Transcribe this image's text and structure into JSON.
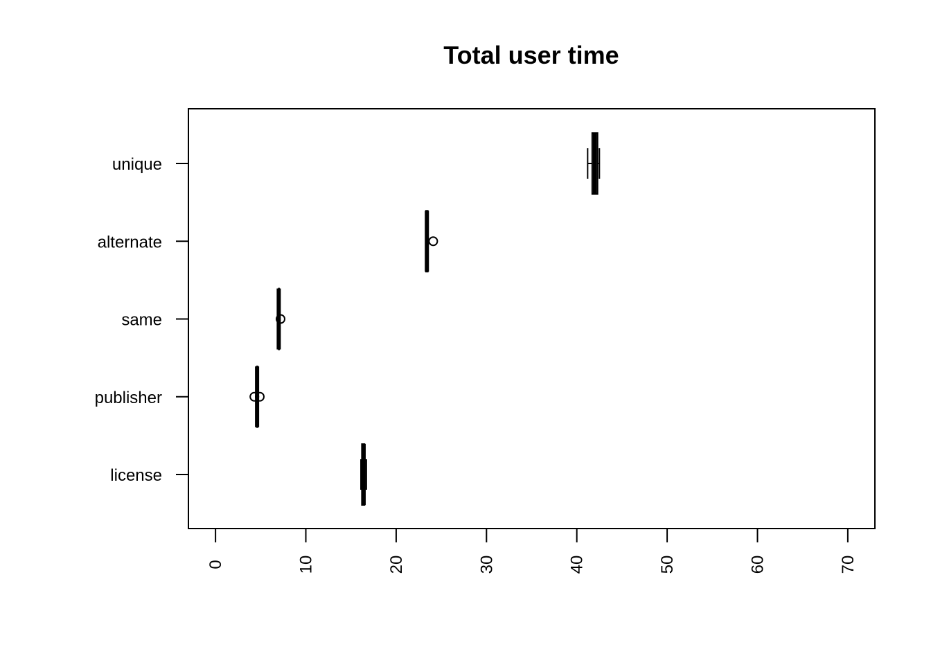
{
  "chart_data": {
    "type": "boxplot",
    "orientation": "horizontal",
    "title": "Total user time",
    "xlim": [
      -3,
      73
    ],
    "x_ticks": [
      0,
      10,
      20,
      30,
      40,
      50,
      60,
      70
    ],
    "x_tick_labels_rotation": "vertical",
    "categories": [
      "license",
      "publisher",
      "same",
      "alternate",
      "unique"
    ],
    "boxes": [
      {
        "category": "license",
        "whisker_low": 16.1,
        "q1": 16.2,
        "median": 16.4,
        "q3": 16.5,
        "whisker_high": 16.7,
        "outliers": []
      },
      {
        "category": "publisher",
        "whisker_low": 4.6,
        "q1": 4.6,
        "median": 4.6,
        "q3": 4.6,
        "whisker_high": 4.6,
        "outliers": [
          4.3,
          4.9
        ]
      },
      {
        "category": "same",
        "whisker_low": 7.0,
        "q1": 7.0,
        "median": 7.0,
        "q3": 7.0,
        "whisker_high": 7.0,
        "outliers": [
          7.2
        ]
      },
      {
        "category": "alternate",
        "whisker_low": 23.3,
        "q1": 23.3,
        "median": 23.4,
        "q3": 23.5,
        "whisker_high": 23.5,
        "outliers": [
          24.1
        ]
      },
      {
        "category": "unique",
        "whisker_low": 41.2,
        "q1": 41.7,
        "median": 42.0,
        "q3": 42.3,
        "whisker_high": 42.5,
        "outliers": []
      }
    ],
    "grid": false,
    "legend": "none",
    "color": "#000000"
  }
}
